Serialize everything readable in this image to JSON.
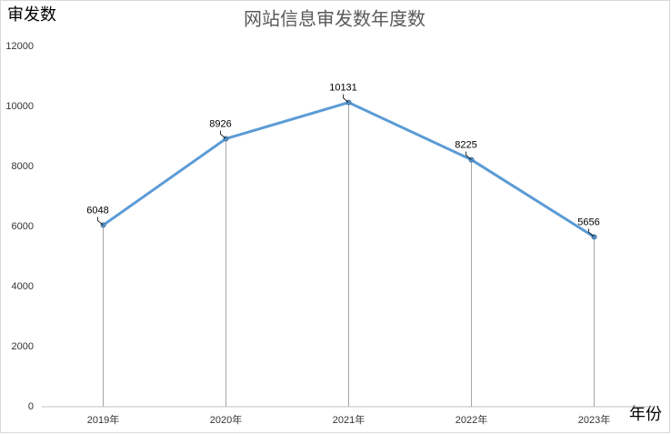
{
  "chart_data": {
    "type": "line",
    "title": "网站信息审发数年度数",
    "y_label": "审发数",
    "x_label": "年份",
    "categories": [
      "2019年",
      "2020年",
      "2021年",
      "2022年",
      "2023年"
    ],
    "series": [
      {
        "name": "审发数",
        "color": "#5b9bd5",
        "values": [
          6048,
          8926,
          10131,
          8225,
          5656
        ]
      }
    ],
    "ylim": [
      0,
      12000
    ],
    "yticks": [
      0,
      2000,
      4000,
      6000,
      8000,
      10000,
      12000
    ],
    "grid": false,
    "drop_lines": true,
    "legend": false
  }
}
